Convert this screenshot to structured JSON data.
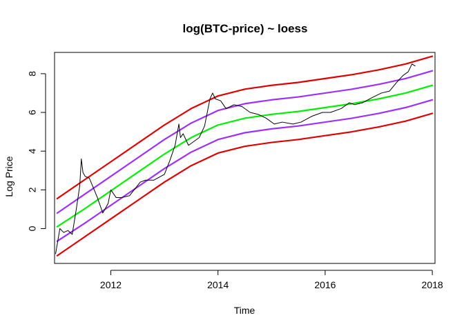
{
  "chart_data": {
    "type": "line",
    "title": "log(BTC-price) ~ loess",
    "xlabel": "Time",
    "ylabel": "Log Price",
    "xlim": [
      2010.95,
      2018.05
    ],
    "ylim": [
      -1.8,
      9.1
    ],
    "grid": false,
    "x_ticks": [
      2012,
      2014,
      2016,
      2018
    ],
    "x_tick_labels": [
      "2012",
      "2014",
      "2016",
      "2018"
    ],
    "y_ticks": [
      0,
      2,
      4,
      6,
      8
    ],
    "y_tick_labels": [
      "0",
      "2",
      "4",
      "6",
      "8"
    ],
    "series": [
      {
        "color": "#dd0000",
        "x": [
          2011.0,
          2011.5,
          2012.0,
          2012.5,
          2013.0,
          2013.5,
          2014.0,
          2014.5,
          2015.0,
          2015.5,
          2016.0,
          2016.5,
          2017.0,
          2017.5,
          2018.0
        ],
        "values": [
          1.55,
          2.5,
          3.45,
          4.4,
          5.35,
          6.2,
          6.85,
          7.2,
          7.4,
          7.55,
          7.75,
          7.95,
          8.2,
          8.5,
          8.9
        ]
      },
      {
        "color": "#9b30ff",
        "x": [
          2011.0,
          2011.5,
          2012.0,
          2012.5,
          2013.0,
          2013.5,
          2014.0,
          2014.5,
          2015.0,
          2015.5,
          2016.0,
          2016.5,
          2017.0,
          2017.5,
          2018.0
        ],
        "values": [
          0.8,
          1.75,
          2.7,
          3.65,
          4.6,
          5.45,
          6.1,
          6.45,
          6.65,
          6.8,
          7.0,
          7.2,
          7.45,
          7.75,
          8.15
        ]
      },
      {
        "color": "#00ee00",
        "x": [
          2011.0,
          2011.5,
          2012.0,
          2012.5,
          2013.0,
          2013.5,
          2014.0,
          2014.5,
          2015.0,
          2015.5,
          2016.0,
          2016.5,
          2017.0,
          2017.5,
          2018.0
        ],
        "values": [
          0.1,
          1.0,
          1.95,
          2.9,
          3.85,
          4.7,
          5.35,
          5.7,
          5.9,
          6.05,
          6.25,
          6.45,
          6.7,
          7.0,
          7.4
        ]
      },
      {
        "color": "#9b30ff",
        "x": [
          2011.0,
          2011.5,
          2012.0,
          2012.5,
          2013.0,
          2013.5,
          2014.0,
          2014.5,
          2015.0,
          2015.5,
          2016.0,
          2016.5,
          2017.0,
          2017.5,
          2018.0
        ],
        "values": [
          -0.65,
          0.25,
          1.2,
          2.15,
          3.1,
          3.95,
          4.6,
          4.95,
          5.15,
          5.3,
          5.5,
          5.7,
          5.95,
          6.25,
          6.65
        ]
      },
      {
        "color": "#dd0000",
        "x": [
          2011.0,
          2011.5,
          2012.0,
          2012.5,
          2013.0,
          2013.5,
          2014.0,
          2014.5,
          2015.0,
          2015.5,
          2016.0,
          2016.5,
          2017.0,
          2017.5,
          2018.0
        ],
        "values": [
          -1.4,
          -0.45,
          0.5,
          1.45,
          2.4,
          3.25,
          3.9,
          4.25,
          4.45,
          4.6,
          4.8,
          5.0,
          5.25,
          5.55,
          5.95
        ]
      },
      {
        "color": "#000000",
        "x": [
          2010.97,
          2011.05,
          2011.12,
          2011.2,
          2011.28,
          2011.35,
          2011.42,
          2011.45,
          2011.48,
          2011.52,
          2011.6,
          2011.75,
          2011.85,
          2011.95,
          2012.0,
          2012.1,
          2012.2,
          2012.35,
          2012.55,
          2012.65,
          2012.8,
          2013.0,
          2013.1,
          2013.2,
          2013.27,
          2013.3,
          2013.35,
          2013.45,
          2013.55,
          2013.65,
          2013.75,
          2013.85,
          2013.9,
          2013.95,
          2014.05,
          2014.15,
          2014.3,
          2014.45,
          2014.6,
          2014.75,
          2014.9,
          2015.05,
          2015.2,
          2015.4,
          2015.55,
          2015.75,
          2015.95,
          2016.1,
          2016.3,
          2016.45,
          2016.55,
          2016.7,
          2016.9,
          2017.05,
          2017.2,
          2017.35,
          2017.45,
          2017.55,
          2017.62,
          2017.68
        ],
        "values": [
          -1.3,
          0.0,
          -0.2,
          -0.1,
          -0.3,
          0.9,
          2.2,
          3.6,
          2.9,
          2.7,
          2.6,
          1.6,
          0.8,
          1.3,
          2.0,
          1.6,
          1.6,
          1.7,
          2.4,
          2.5,
          2.5,
          2.8,
          3.5,
          4.3,
          5.4,
          4.7,
          4.9,
          4.3,
          4.5,
          4.7,
          5.3,
          6.7,
          7.0,
          6.7,
          6.6,
          6.2,
          6.4,
          6.3,
          6.0,
          5.9,
          5.7,
          5.4,
          5.5,
          5.4,
          5.5,
          5.8,
          6.0,
          6.0,
          6.2,
          6.5,
          6.4,
          6.5,
          6.8,
          7.0,
          7.1,
          7.6,
          7.9,
          8.1,
          8.5,
          8.4
        ]
      }
    ]
  }
}
